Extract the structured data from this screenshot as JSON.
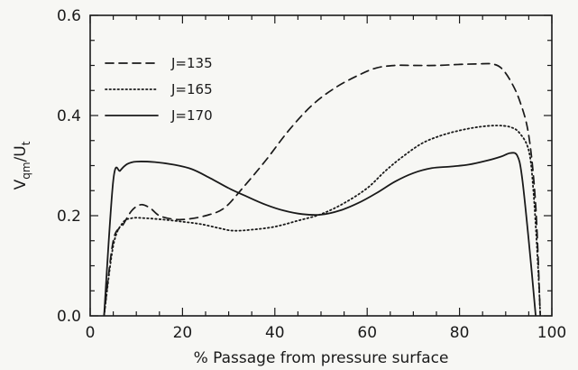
{
  "chart_data": {
    "type": "line",
    "xlabel": "% Passage from pressure surface",
    "ylabel_main": "V",
    "ylabel_main_sub": "qm",
    "ylabel_sep": "/U",
    "ylabel_sep_sub": "t",
    "xlim": [
      0,
      100
    ],
    "ylim": [
      0,
      0.6
    ],
    "xticks": [
      0,
      20,
      40,
      60,
      80,
      100
    ],
    "yticks": [
      0.0,
      0.2,
      0.4,
      0.6
    ],
    "xtick_labels": [
      "0",
      "20",
      "40",
      "60",
      "80",
      "100"
    ],
    "ytick_labels": [
      "0.0",
      "0.2",
      "0.4",
      "0.6"
    ],
    "grid": false,
    "legend_position": "top-left",
    "series": [
      {
        "name": "J=135",
        "style": "dashed",
        "points": [
          [
            3,
            0.0
          ],
          [
            5,
            0.15
          ],
          [
            7,
            0.18
          ],
          [
            9,
            0.21
          ],
          [
            11,
            0.222
          ],
          [
            13,
            0.215
          ],
          [
            15,
            0.2
          ],
          [
            18,
            0.193
          ],
          [
            21,
            0.193
          ],
          [
            25,
            0.2
          ],
          [
            29,
            0.215
          ],
          [
            33,
            0.255
          ],
          [
            38,
            0.31
          ],
          [
            43,
            0.37
          ],
          [
            48,
            0.42
          ],
          [
            53,
            0.455
          ],
          [
            58,
            0.48
          ],
          [
            62,
            0.495
          ],
          [
            66,
            0.5
          ],
          [
            70,
            0.5
          ],
          [
            75,
            0.5
          ],
          [
            80,
            0.502
          ],
          [
            84,
            0.503
          ],
          [
            87,
            0.503
          ],
          [
            89,
            0.495
          ],
          [
            91,
            0.47
          ],
          [
            93,
            0.43
          ],
          [
            95,
            0.36
          ],
          [
            96.5,
            0.22
          ],
          [
            97.5,
            0.0
          ]
        ]
      },
      {
        "name": "J=165",
        "style": "dotted",
        "points": [
          [
            3,
            0.0
          ],
          [
            5,
            0.14
          ],
          [
            7,
            0.185
          ],
          [
            9,
            0.195
          ],
          [
            12,
            0.195
          ],
          [
            16,
            0.192
          ],
          [
            20,
            0.188
          ],
          [
            24,
            0.183
          ],
          [
            28,
            0.175
          ],
          [
            31,
            0.17
          ],
          [
            35,
            0.172
          ],
          [
            40,
            0.178
          ],
          [
            45,
            0.19
          ],
          [
            50,
            0.203
          ],
          [
            55,
            0.225
          ],
          [
            60,
            0.255
          ],
          [
            64,
            0.29
          ],
          [
            68,
            0.32
          ],
          [
            72,
            0.345
          ],
          [
            76,
            0.36
          ],
          [
            80,
            0.37
          ],
          [
            84,
            0.377
          ],
          [
            88,
            0.38
          ],
          [
            91,
            0.377
          ],
          [
            93,
            0.365
          ],
          [
            95,
            0.33
          ],
          [
            96,
            0.25
          ],
          [
            97,
            0.1
          ],
          [
            97.5,
            0.0
          ]
        ]
      },
      {
        "name": "J=170",
        "style": "solid",
        "points": [
          [
            3,
            0.0
          ],
          [
            5,
            0.27
          ],
          [
            6.5,
            0.29
          ],
          [
            8,
            0.303
          ],
          [
            10,
            0.308
          ],
          [
            14,
            0.307
          ],
          [
            18,
            0.302
          ],
          [
            22,
            0.293
          ],
          [
            26,
            0.275
          ],
          [
            30,
            0.255
          ],
          [
            34,
            0.238
          ],
          [
            38,
            0.222
          ],
          [
            42,
            0.21
          ],
          [
            46,
            0.203
          ],
          [
            50,
            0.202
          ],
          [
            54,
            0.21
          ],
          [
            58,
            0.225
          ],
          [
            62,
            0.245
          ],
          [
            66,
            0.268
          ],
          [
            70,
            0.285
          ],
          [
            74,
            0.295
          ],
          [
            78,
            0.298
          ],
          [
            82,
            0.302
          ],
          [
            86,
            0.31
          ],
          [
            89,
            0.318
          ],
          [
            91,
            0.325
          ],
          [
            92.5,
            0.32
          ],
          [
            93.5,
            0.28
          ],
          [
            95,
            0.15
          ],
          [
            96.5,
            0.0
          ]
        ]
      }
    ]
  }
}
